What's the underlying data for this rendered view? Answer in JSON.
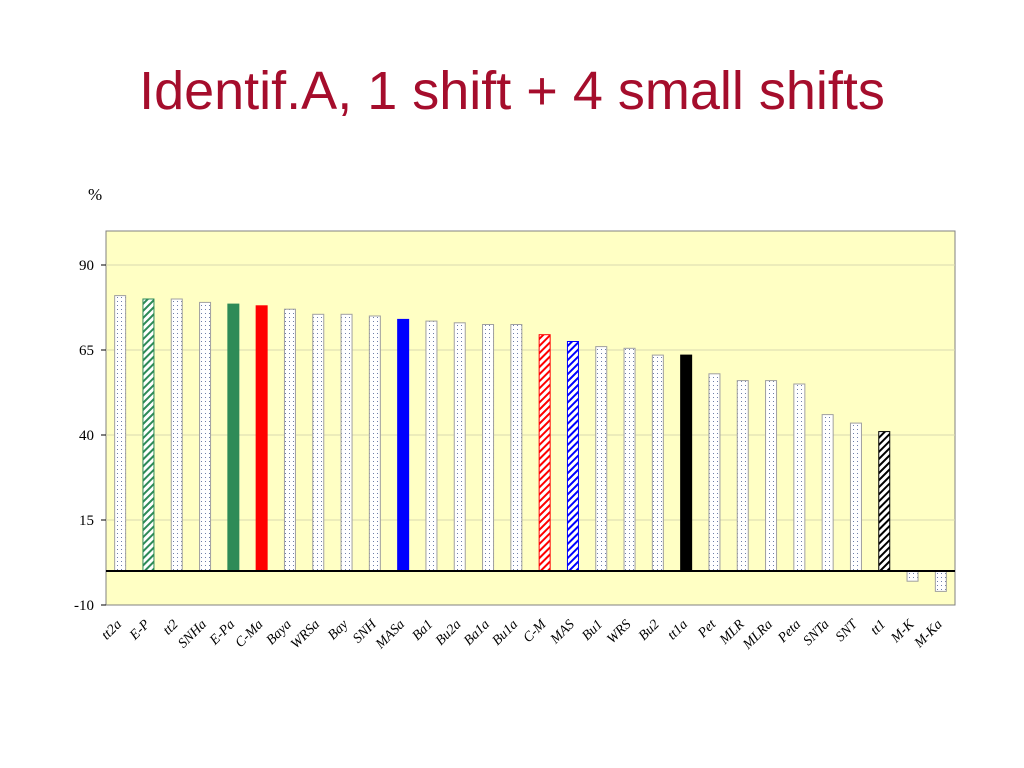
{
  "title": "Identif.A, 1 shift + 4 small shifts",
  "chart_data": {
    "type": "bar",
    "title": "",
    "xlabel": "",
    "ylabel": "%",
    "ylim": [
      -10,
      100
    ],
    "yticks": [
      -10,
      15,
      40,
      65,
      90
    ],
    "grid": true,
    "legend": "none",
    "plot_background": "#ffffc4",
    "categories": [
      "tt2a",
      "E-P",
      "tt2",
      "SNHa",
      "E-Pa",
      "C-Ma",
      "Baya",
      "WRSa",
      "Bay",
      "SNH",
      "MASa",
      "Ba1",
      "Bu2a",
      "Ba1a",
      "Bu1a",
      "C-M",
      "MAS",
      "Bu1",
      "WRS",
      "Bu2",
      "tt1a",
      "Pet",
      "MLR",
      "MLRa",
      "Peta",
      "SNTa",
      "SNT",
      "tt1",
      "M-K",
      "M-Ka"
    ],
    "values": [
      81,
      80,
      80,
      79,
      78.5,
      78,
      77,
      75.5,
      75.5,
      75,
      74,
      73.5,
      73,
      72.5,
      72.5,
      69.5,
      67.5,
      66,
      65.5,
      63.5,
      63.5,
      58,
      56,
      56,
      55,
      46,
      43.5,
      41,
      -3,
      -6
    ],
    "styles": [
      "dots",
      "green-hatch",
      "dots",
      "dots",
      "green",
      "red",
      "dots",
      "dots",
      "dots",
      "dots",
      "blue",
      "dots",
      "dots",
      "dots",
      "dots",
      "red-hatch",
      "blue-hatch",
      "dots",
      "dots",
      "dots",
      "black",
      "dots",
      "dots",
      "dots",
      "dots",
      "dots",
      "dots",
      "black-hatch",
      "dots",
      "dots"
    ],
    "colors": {
      "green": "#2e8b57",
      "red": "#ff0000",
      "blue": "#0000ff",
      "black": "#000000",
      "title": "#a50d2c",
      "outline": "#a0a0a0"
    }
  }
}
